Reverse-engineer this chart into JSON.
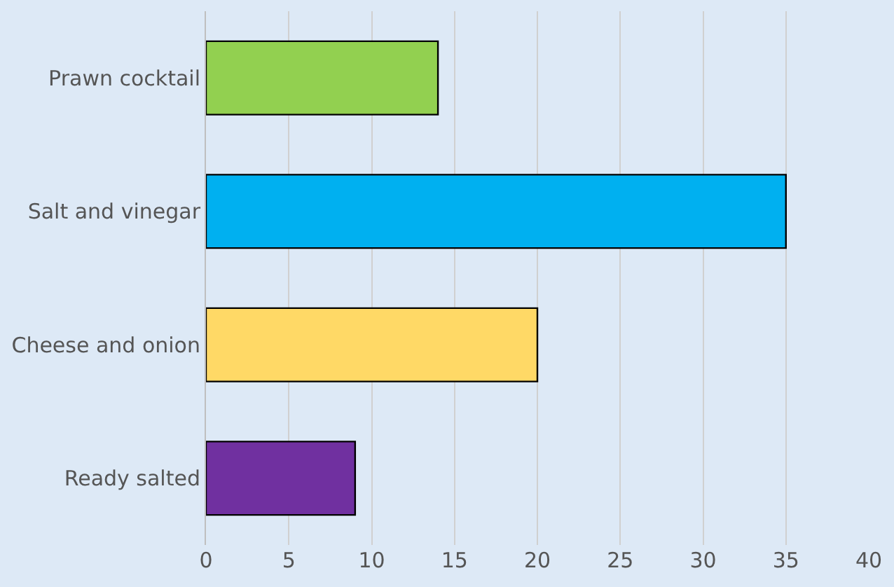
{
  "chart_data": {
    "type": "bar",
    "orientation": "horizontal",
    "categories": [
      "Prawn cocktail",
      "Salt and vinegar",
      "Cheese and onion",
      "Ready salted"
    ],
    "values": [
      14,
      35,
      20,
      9
    ],
    "colors": [
      "#92d050",
      "#00b0f0",
      "#ffd966",
      "#7030a0"
    ],
    "xlim": [
      0,
      40
    ],
    "xticks": [
      0,
      5,
      10,
      15,
      20,
      25,
      30,
      35,
      40
    ],
    "grid": "x",
    "legend": false
  }
}
